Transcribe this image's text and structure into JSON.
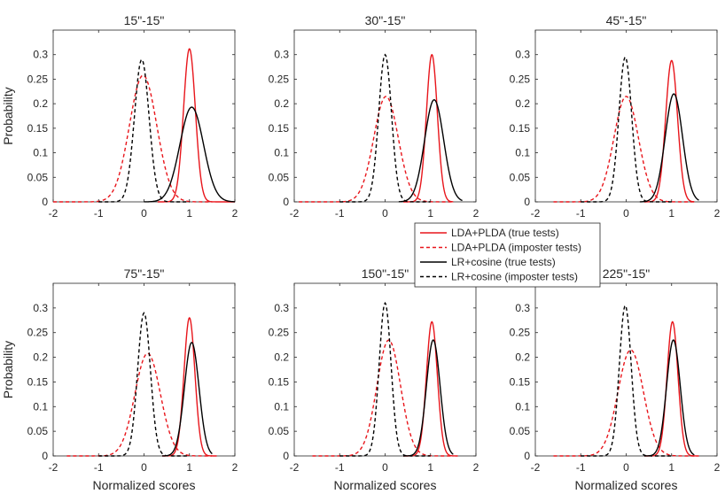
{
  "chart_data": {
    "type": "line",
    "layout": "2x3 grid",
    "ylabel": "Probability",
    "xlabel": "Normalized scores",
    "xlim": [
      -2,
      2
    ],
    "ylim": [
      0,
      0.35
    ],
    "xticks": [
      "-2",
      "-1",
      "0",
      "1",
      "2"
    ],
    "yticks": [
      "0",
      "0.05",
      "0.1",
      "0.15",
      "0.2",
      "0.25",
      "0.3"
    ],
    "legend": {
      "placement": "center",
      "entries": [
        {
          "label": "LDA+PLDA (true tests)",
          "color": "#e8151b",
          "style": "solid"
        },
        {
          "label": "LDA+PLDA (imposter tests)",
          "color": "#e8151b",
          "style": "dashed"
        },
        {
          "label": "LR+cosine (true tests)",
          "color": "#000000",
          "style": "solid"
        },
        {
          "label": "LR+cosine (imposter tests)",
          "color": "#000000",
          "style": "dashed"
        }
      ]
    },
    "panels": [
      {
        "title": "15\"-15\"",
        "series": [
          {
            "name": "LDA+PLDA (true tests)",
            "mu": 1.0,
            "peak": 0.312,
            "sigma": 0.13,
            "range": [
              0.3,
              2.0
            ]
          },
          {
            "name": "LDA+PLDA (imposter tests)",
            "mu": -0.02,
            "peak": 0.258,
            "sigma": 0.3,
            "range": [
              -2.0,
              1.5
            ]
          },
          {
            "name": "LR+cosine (true tests)",
            "mu": 1.05,
            "peak": 0.193,
            "sigma": 0.26,
            "range": [
              0.0,
              2.0
            ]
          },
          {
            "name": "LR+cosine (imposter tests)",
            "mu": -0.05,
            "peak": 0.29,
            "sigma": 0.16,
            "range": [
              -1.0,
              1.0
            ]
          }
        ]
      },
      {
        "title": "30\"-15\"",
        "series": [
          {
            "name": "LDA+PLDA (true tests)",
            "mu": 1.03,
            "peak": 0.3,
            "sigma": 0.12,
            "range": [
              0.4,
              1.5
            ]
          },
          {
            "name": "LDA+PLDA (imposter tests)",
            "mu": 0.02,
            "peak": 0.215,
            "sigma": 0.27,
            "range": [
              -1.9,
              1.5
            ]
          },
          {
            "name": "LR+cosine (true tests)",
            "mu": 1.08,
            "peak": 0.208,
            "sigma": 0.21,
            "range": [
              0.3,
              1.7
            ]
          },
          {
            "name": "LR+cosine (imposter tests)",
            "mu": 0.0,
            "peak": 0.3,
            "sigma": 0.14,
            "range": [
              -1.0,
              1.0
            ]
          }
        ]
      },
      {
        "title": "45\"-15\"",
        "series": [
          {
            "name": "LDA+PLDA (true tests)",
            "mu": 1.0,
            "peak": 0.288,
            "sigma": 0.13,
            "range": [
              0.4,
              1.5
            ]
          },
          {
            "name": "LDA+PLDA (imposter tests)",
            "mu": 0.0,
            "peak": 0.215,
            "sigma": 0.27,
            "range": [
              -1.6,
              1.5
            ]
          },
          {
            "name": "LR+cosine (true tests)",
            "mu": 1.05,
            "peak": 0.22,
            "sigma": 0.19,
            "range": [
              0.3,
              1.6
            ]
          },
          {
            "name": "LR+cosine (imposter tests)",
            "mu": -0.02,
            "peak": 0.295,
            "sigma": 0.14,
            "range": [
              -1.0,
              1.0
            ]
          }
        ]
      },
      {
        "title": "75\"-15\"",
        "series": [
          {
            "name": "LDA+PLDA (true tests)",
            "mu": 1.0,
            "peak": 0.28,
            "sigma": 0.12,
            "range": [
              0.4,
              1.6
            ]
          },
          {
            "name": "LDA+PLDA (imposter tests)",
            "mu": 0.08,
            "peak": 0.208,
            "sigma": 0.28,
            "range": [
              -1.7,
              1.5
            ]
          },
          {
            "name": "LR+cosine (true tests)",
            "mu": 1.05,
            "peak": 0.23,
            "sigma": 0.16,
            "range": [
              0.4,
              1.5
            ]
          },
          {
            "name": "LR+cosine (imposter tests)",
            "mu": 0.0,
            "peak": 0.29,
            "sigma": 0.14,
            "range": [
              -1.0,
              1.0
            ]
          }
        ]
      },
      {
        "title": "150\"-15\"",
        "series": [
          {
            "name": "LDA+PLDA (true tests)",
            "mu": 1.03,
            "peak": 0.272,
            "sigma": 0.12,
            "range": [
              0.4,
              1.6
            ]
          },
          {
            "name": "LDA+PLDA (imposter tests)",
            "mu": 0.08,
            "peak": 0.235,
            "sigma": 0.26,
            "range": [
              -1.6,
              1.5
            ]
          },
          {
            "name": "LR+cosine (true tests)",
            "mu": 1.06,
            "peak": 0.235,
            "sigma": 0.15,
            "range": [
              0.4,
              1.5
            ]
          },
          {
            "name": "LR+cosine (imposter tests)",
            "mu": 0.0,
            "peak": 0.31,
            "sigma": 0.13,
            "range": [
              -1.0,
              1.0
            ]
          }
        ]
      },
      {
        "title": "225\"-15\"",
        "series": [
          {
            "name": "LDA+PLDA (true tests)",
            "mu": 1.02,
            "peak": 0.272,
            "sigma": 0.12,
            "range": [
              0.4,
              1.6
            ]
          },
          {
            "name": "LDA+PLDA (imposter tests)",
            "mu": 0.1,
            "peak": 0.215,
            "sigma": 0.28,
            "range": [
              -1.6,
              1.5
            ]
          },
          {
            "name": "LR+cosine (true tests)",
            "mu": 1.04,
            "peak": 0.235,
            "sigma": 0.15,
            "range": [
              0.4,
              1.5
            ]
          },
          {
            "name": "LR+cosine (imposter tests)",
            "mu": -0.02,
            "peak": 0.305,
            "sigma": 0.13,
            "range": [
              -1.0,
              1.0
            ]
          }
        ]
      }
    ]
  }
}
